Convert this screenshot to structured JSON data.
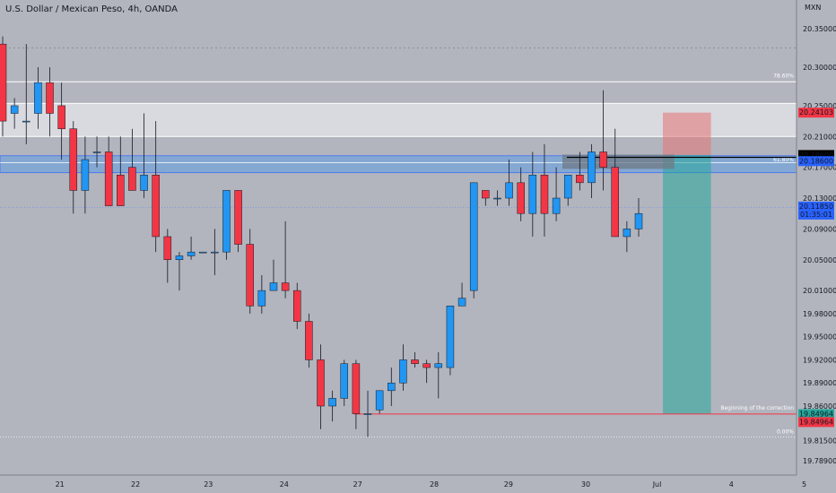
{
  "header": {
    "symbol_title": "U.S. Dollar / Mexican Peso, 4h, OANDA"
  },
  "chart_data": {
    "type": "candlestick",
    "title": "U.S. Dollar / Mexican Peso, 4h, OANDA",
    "currency": "MXN",
    "ylim": [
      19.765,
      20.385
    ],
    "y_ticks": [
      "20.35000",
      "20.30000",
      "20.25000",
      "20.21000",
      "20.17000",
      "20.13000",
      "20.09000",
      "20.05000",
      "20.01000",
      "19.98000",
      "19.95000",
      "19.92000",
      "19.89000",
      "19.86000",
      "19.81500",
      "19.78900"
    ],
    "x_labels": [
      "21",
      "22",
      "23",
      "24",
      "27",
      "28",
      "29",
      "30",
      "Jul",
      "4",
      "5"
    ],
    "colors": {
      "up": "#2196f3",
      "down": "#f23645",
      "background": "#b2b5be",
      "price_line": "#2962ff"
    },
    "candles": [
      {
        "o": 20.33,
        "h": 20.34,
        "l": 20.21,
        "c": 20.23
      },
      {
        "o": 20.24,
        "h": 20.26,
        "l": 20.22,
        "c": 20.25
      },
      {
        "o": 20.23,
        "h": 20.33,
        "l": 20.2,
        "c": 20.23
      },
      {
        "o": 20.24,
        "h": 20.3,
        "l": 20.22,
        "c": 20.28
      },
      {
        "o": 20.28,
        "h": 20.3,
        "l": 20.21,
        "c": 20.24
      },
      {
        "o": 20.25,
        "h": 20.28,
        "l": 20.18,
        "c": 20.22
      },
      {
        "o": 20.22,
        "h": 20.23,
        "l": 20.11,
        "c": 20.14
      },
      {
        "o": 20.14,
        "h": 20.21,
        "l": 20.11,
        "c": 20.18
      },
      {
        "o": 20.19,
        "h": 20.21,
        "l": 20.17,
        "c": 20.19
      },
      {
        "o": 20.19,
        "h": 20.21,
        "l": 20.12,
        "c": 20.12
      },
      {
        "o": 20.16,
        "h": 20.21,
        "l": 20.12,
        "c": 20.12
      },
      {
        "o": 20.17,
        "h": 20.22,
        "l": 20.14,
        "c": 20.14
      },
      {
        "o": 20.14,
        "h": 20.24,
        "l": 20.13,
        "c": 20.16
      },
      {
        "o": 20.16,
        "h": 20.23,
        "l": 20.06,
        "c": 20.08
      },
      {
        "o": 20.08,
        "h": 20.09,
        "l": 20.02,
        "c": 20.05
      },
      {
        "o": 20.05,
        "h": 20.06,
        "l": 20.01,
        "c": 20.055
      },
      {
        "o": 20.055,
        "h": 20.08,
        "l": 20.05,
        "c": 20.06
      },
      {
        "o": 20.06,
        "h": 20.06,
        "l": 20.06,
        "c": 20.06
      },
      {
        "o": 20.06,
        "h": 20.09,
        "l": 20.03,
        "c": 20.06
      },
      {
        "o": 20.06,
        "h": 20.14,
        "l": 20.05,
        "c": 20.14
      },
      {
        "o": 20.14,
        "h": 20.14,
        "l": 20.06,
        "c": 20.07
      },
      {
        "o": 20.07,
        "h": 20.09,
        "l": 19.98,
        "c": 19.99
      },
      {
        "o": 19.99,
        "h": 20.03,
        "l": 19.98,
        "c": 20.01
      },
      {
        "o": 20.01,
        "h": 20.05,
        "l": 20.01,
        "c": 20.02
      },
      {
        "o": 20.02,
        "h": 20.1,
        "l": 20.0,
        "c": 20.01
      },
      {
        "o": 20.01,
        "h": 20.02,
        "l": 19.96,
        "c": 19.97
      },
      {
        "o": 19.97,
        "h": 19.98,
        "l": 19.91,
        "c": 19.92
      },
      {
        "o": 19.92,
        "h": 19.94,
        "l": 19.83,
        "c": 19.86
      },
      {
        "o": 19.86,
        "h": 19.88,
        "l": 19.84,
        "c": 19.87
      },
      {
        "o": 19.87,
        "h": 19.92,
        "l": 19.86,
        "c": 19.915
      },
      {
        "o": 19.915,
        "h": 19.92,
        "l": 19.83,
        "c": 19.85
      },
      {
        "o": 19.85,
        "h": 19.88,
        "l": 19.82,
        "c": 19.85
      },
      {
        "o": 19.855,
        "h": 19.88,
        "l": 19.85,
        "c": 19.88
      },
      {
        "o": 19.88,
        "h": 19.91,
        "l": 19.86,
        "c": 19.89
      },
      {
        "o": 19.89,
        "h": 19.94,
        "l": 19.88,
        "c": 19.92
      },
      {
        "o": 19.92,
        "h": 19.93,
        "l": 19.91,
        "c": 19.915
      },
      {
        "o": 19.915,
        "h": 19.92,
        "l": 19.89,
        "c": 19.91
      },
      {
        "o": 19.91,
        "h": 19.93,
        "l": 19.87,
        "c": 19.915
      },
      {
        "o": 19.91,
        "h": 19.99,
        "l": 19.9,
        "c": 19.99
      },
      {
        "o": 19.99,
        "h": 20.02,
        "l": 19.99,
        "c": 20.0
      },
      {
        "o": 20.01,
        "h": 20.15,
        "l": 20.0,
        "c": 20.15
      },
      {
        "o": 20.14,
        "h": 20.14,
        "l": 20.12,
        "c": 20.13
      },
      {
        "o": 20.13,
        "h": 20.14,
        "l": 20.12,
        "c": 20.13
      },
      {
        "o": 20.13,
        "h": 20.18,
        "l": 20.12,
        "c": 20.15
      },
      {
        "o": 20.15,
        "h": 20.17,
        "l": 20.1,
        "c": 20.11
      },
      {
        "o": 20.11,
        "h": 20.19,
        "l": 20.08,
        "c": 20.16
      },
      {
        "o": 20.16,
        "h": 20.2,
        "l": 20.08,
        "c": 20.11
      },
      {
        "o": 20.11,
        "h": 20.17,
        "l": 20.1,
        "c": 20.13
      },
      {
        "o": 20.13,
        "h": 20.16,
        "l": 20.12,
        "c": 20.16
      },
      {
        "o": 20.16,
        "h": 20.19,
        "l": 20.14,
        "c": 20.15
      },
      {
        "o": 20.15,
        "h": 20.2,
        "l": 20.13,
        "c": 20.19
      },
      {
        "o": 20.19,
        "h": 20.27,
        "l": 20.14,
        "c": 20.17
      },
      {
        "o": 20.17,
        "h": 20.22,
        "l": 20.08,
        "c": 20.08
      },
      {
        "o": 20.08,
        "h": 20.1,
        "l": 20.06,
        "c": 20.09
      },
      {
        "o": 20.09,
        "h": 20.13,
        "l": 20.08,
        "c": 20.11
      }
    ],
    "x_label_positions": [
      7.4,
      17.7,
      27.6,
      37.9,
      47.9,
      58.3,
      68.4,
      78.9,
      88.6,
      98.7,
      108.6
    ],
    "levels": {
      "fib_786": {
        "price": 20.281,
        "label": "78.60%"
      },
      "fib_618": {
        "price": 20.18,
        "label": "61.80%"
      },
      "fib_0": {
        "price": 19.82,
        "label": "0.00%"
      },
      "upper_zone": [
        20.21,
        20.253
      ],
      "blue_zone": [
        20.163,
        20.185
      ],
      "correction_line": {
        "price": 19.8496,
        "label": "Beginning of the correction"
      },
      "current_price": 20.1185
    },
    "position_tool": {
      "entry": 20.186,
      "stop": 20.241,
      "target": 19.8496,
      "start_index": 92,
      "end_index": 98.7
    },
    "grey_box": {
      "top": 20.1865,
      "bottom": 20.168,
      "start_index": 78,
      "end_index": 93.6
    },
    "price_tags": [
      {
        "text": "20.24103",
        "price": 20.241,
        "bg": "#f23645",
        "fg": "#ffffff"
      },
      {
        "text": "20.18600",
        "price": 20.186,
        "bg": "#000000",
        "fg": "#ffffff"
      },
      {
        "text": "20.18600",
        "price": 20.178,
        "bg": "#2962ff",
        "fg": "#ffffff"
      },
      {
        "text": "20.11850",
        "price": 20.1185,
        "bg": "#2962ff",
        "fg": "#ffffff",
        "sub": "01:35:01"
      },
      {
        "text": "19.84964",
        "price": 19.8496,
        "bg": "#26a69a",
        "fg": "#ffffff"
      },
      {
        "text": "19.84964",
        "price": 19.8392,
        "bg": "#f23645",
        "fg": "#ffffff"
      }
    ]
  }
}
